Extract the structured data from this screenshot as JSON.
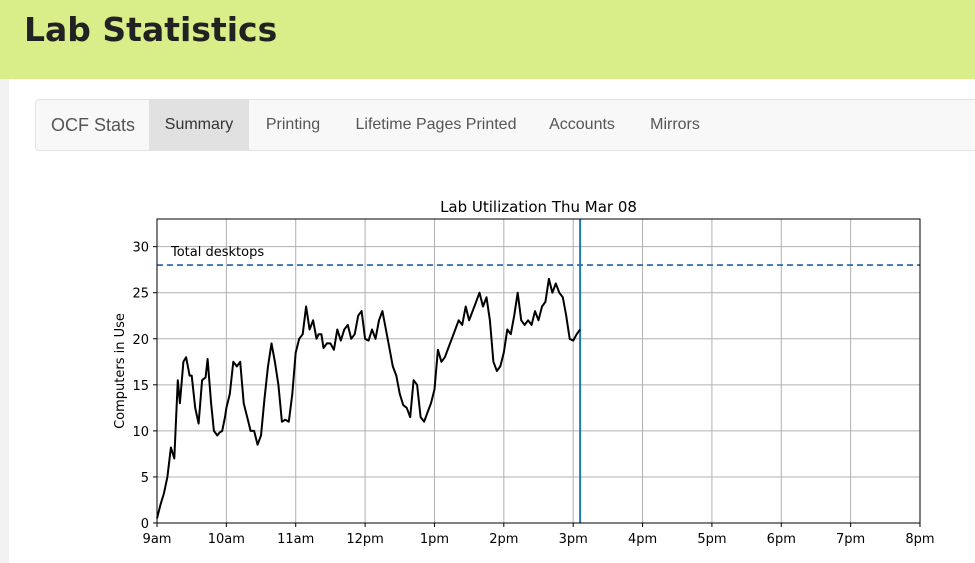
{
  "page": {
    "title": "Lab Statistics"
  },
  "nav": {
    "brand": "OCF Stats",
    "items": [
      {
        "label": "Summary",
        "active": true
      },
      {
        "label": "Printing",
        "active": false
      },
      {
        "label": "Lifetime Pages Printed",
        "active": false
      },
      {
        "label": "Accounts",
        "active": false
      },
      {
        "label": "Mirrors",
        "active": false
      }
    ]
  },
  "colors": {
    "header_bg": "#d9ee88",
    "nav_active_bg": "#e1e1e1",
    "reference_line": "#1f5fa8",
    "current_time_line": "#1f77b4",
    "series_line": "#000000"
  },
  "chart_data": {
    "type": "line",
    "title": "Lab Utilization Thu Mar 08",
    "xlabel": "",
    "ylabel": "Computers in Use",
    "x_tick_labels": [
      "9am",
      "10am",
      "11am",
      "12pm",
      "1pm",
      "2pm",
      "3pm",
      "4pm",
      "5pm",
      "6pm",
      "7pm",
      "8pm"
    ],
    "y_ticks": [
      0,
      5,
      10,
      15,
      20,
      25,
      30
    ],
    "xlim_hours": [
      9,
      20
    ],
    "ylim": [
      0,
      33
    ],
    "grid": true,
    "reference_line": {
      "label": "Total desktops",
      "value": 28,
      "style": "dashed"
    },
    "current_time_hour": 15.1,
    "series": [
      {
        "x": [
          9.0,
          9.05,
          9.1,
          9.15,
          9.2,
          9.25,
          9.3,
          9.33,
          9.38,
          9.42,
          9.47,
          9.5,
          9.55,
          9.6,
          9.65,
          9.7,
          9.73,
          9.78,
          9.82,
          9.87,
          9.9,
          9.94,
          9.98,
          10.0,
          10.05,
          10.1,
          10.15,
          10.2,
          10.25,
          10.3,
          10.35,
          10.4,
          10.45,
          10.5,
          10.55,
          10.6,
          10.65,
          10.7,
          10.75,
          10.8,
          10.85,
          10.9,
          10.95,
          11.0,
          11.05,
          11.1,
          11.15,
          11.2,
          11.25,
          11.3,
          11.33,
          11.37,
          11.4,
          11.45,
          11.5,
          11.55,
          11.6,
          11.65,
          11.7,
          11.75,
          11.8,
          11.85,
          11.9,
          11.95,
          12.0,
          12.05,
          12.1,
          12.15,
          12.2,
          12.25,
          12.3,
          12.35,
          12.4,
          12.45,
          12.5,
          12.55,
          12.6,
          12.65,
          12.7,
          12.75,
          12.8,
          12.85,
          12.9,
          12.95,
          13.0,
          13.05,
          13.1,
          13.15,
          13.2,
          13.25,
          13.3,
          13.35,
          13.4,
          13.45,
          13.5,
          13.55,
          13.6,
          13.65,
          13.7,
          13.75,
          13.8,
          13.85,
          13.9,
          13.95,
          14.0,
          14.05,
          14.1,
          14.15,
          14.2,
          14.25,
          14.3,
          14.35,
          14.4,
          14.45,
          14.5,
          14.55,
          14.6,
          14.65,
          14.7,
          14.75,
          14.8,
          14.85,
          14.9,
          14.95,
          15.0,
          15.05,
          15.1
        ],
        "y": [
          0.5,
          2.0,
          3.2,
          5.0,
          8.2,
          7.0,
          15.5,
          13.0,
          17.5,
          18.0,
          16.0,
          16.0,
          12.5,
          10.8,
          15.5,
          15.8,
          17.8,
          13.0,
          10.0,
          9.5,
          9.8,
          10.0,
          11.5,
          12.5,
          14.0,
          17.5,
          17.0,
          17.5,
          13.0,
          11.5,
          10.0,
          10.0,
          8.5,
          9.5,
          13.5,
          17.0,
          19.5,
          17.5,
          15.0,
          11.0,
          11.2,
          11.0,
          14.0,
          18.5,
          20.0,
          20.5,
          23.5,
          21.0,
          22.0,
          20.0,
          20.5,
          20.5,
          19.0,
          19.5,
          19.5,
          18.8,
          21.0,
          19.8,
          21.0,
          21.5,
          20.0,
          20.5,
          22.5,
          23.0,
          20.0,
          19.8,
          21.0,
          20.0,
          22.0,
          23.0,
          21.0,
          19.0,
          17.0,
          16.0,
          14.0,
          12.8,
          12.5,
          11.5,
          15.5,
          15.0,
          11.5,
          11.0,
          12.0,
          13.0,
          14.5,
          18.8,
          17.5,
          18.0,
          19.0,
          20.0,
          21.0,
          22.0,
          21.5,
          23.5,
          22.0,
          23.0,
          24.0,
          25.0,
          23.5,
          24.5,
          22.0,
          17.5,
          16.5,
          17.0,
          18.5,
          21.0,
          20.5,
          22.5,
          25.0,
          22.0,
          21.5,
          22.0,
          21.5,
          23.0,
          22.0,
          23.5,
          24.0,
          26.5,
          25.0,
          26.0,
          25.0,
          24.5,
          22.5,
          20.0,
          19.8,
          20.5,
          21.0
        ]
      }
    ]
  }
}
